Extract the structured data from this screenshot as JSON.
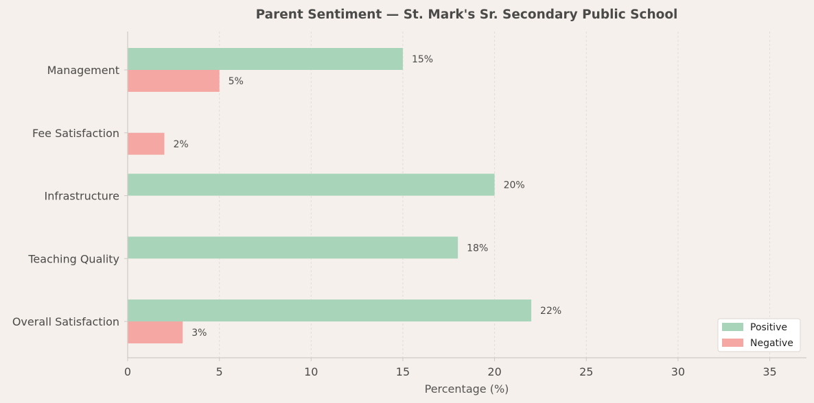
{
  "chart_data": {
    "type": "bar",
    "orientation": "horizontal",
    "title": "Parent Sentiment — St. Mark's Sr. Secondary Public School",
    "xlabel": "Percentage (%)",
    "ylabel": "",
    "categories": [
      "Overall Satisfaction",
      "Teaching Quality",
      "Infrastructure",
      "Fee Satisfaction",
      "Management"
    ],
    "series": [
      {
        "name": "Positive",
        "values": [
          22,
          18,
          20,
          0,
          15
        ],
        "color": "#a8d5b9"
      },
      {
        "name": "Negative",
        "values": [
          3,
          0,
          0,
          2,
          5
        ],
        "color": "#f4a7a3"
      }
    ],
    "data_labels": {
      "Positive": [
        "22%",
        "18%",
        "20%",
        "",
        "15%"
      ],
      "Negative": [
        "3%",
        "",
        "",
        "2%",
        "5%"
      ]
    },
    "xlim": [
      0,
      37
    ],
    "xticks": [
      0,
      5,
      10,
      15,
      20,
      25,
      30,
      35
    ],
    "xtick_labels": [
      "0",
      "5",
      "10",
      "15",
      "20",
      "25",
      "30",
      "35"
    ],
    "grid": "vertical dashed",
    "legend_position": "bottom-right"
  },
  "colors": {
    "background": "#f5f0ec",
    "grid": "#e2dcd7",
    "axis": "#cfc9c4",
    "text": "#4a4a48"
  }
}
